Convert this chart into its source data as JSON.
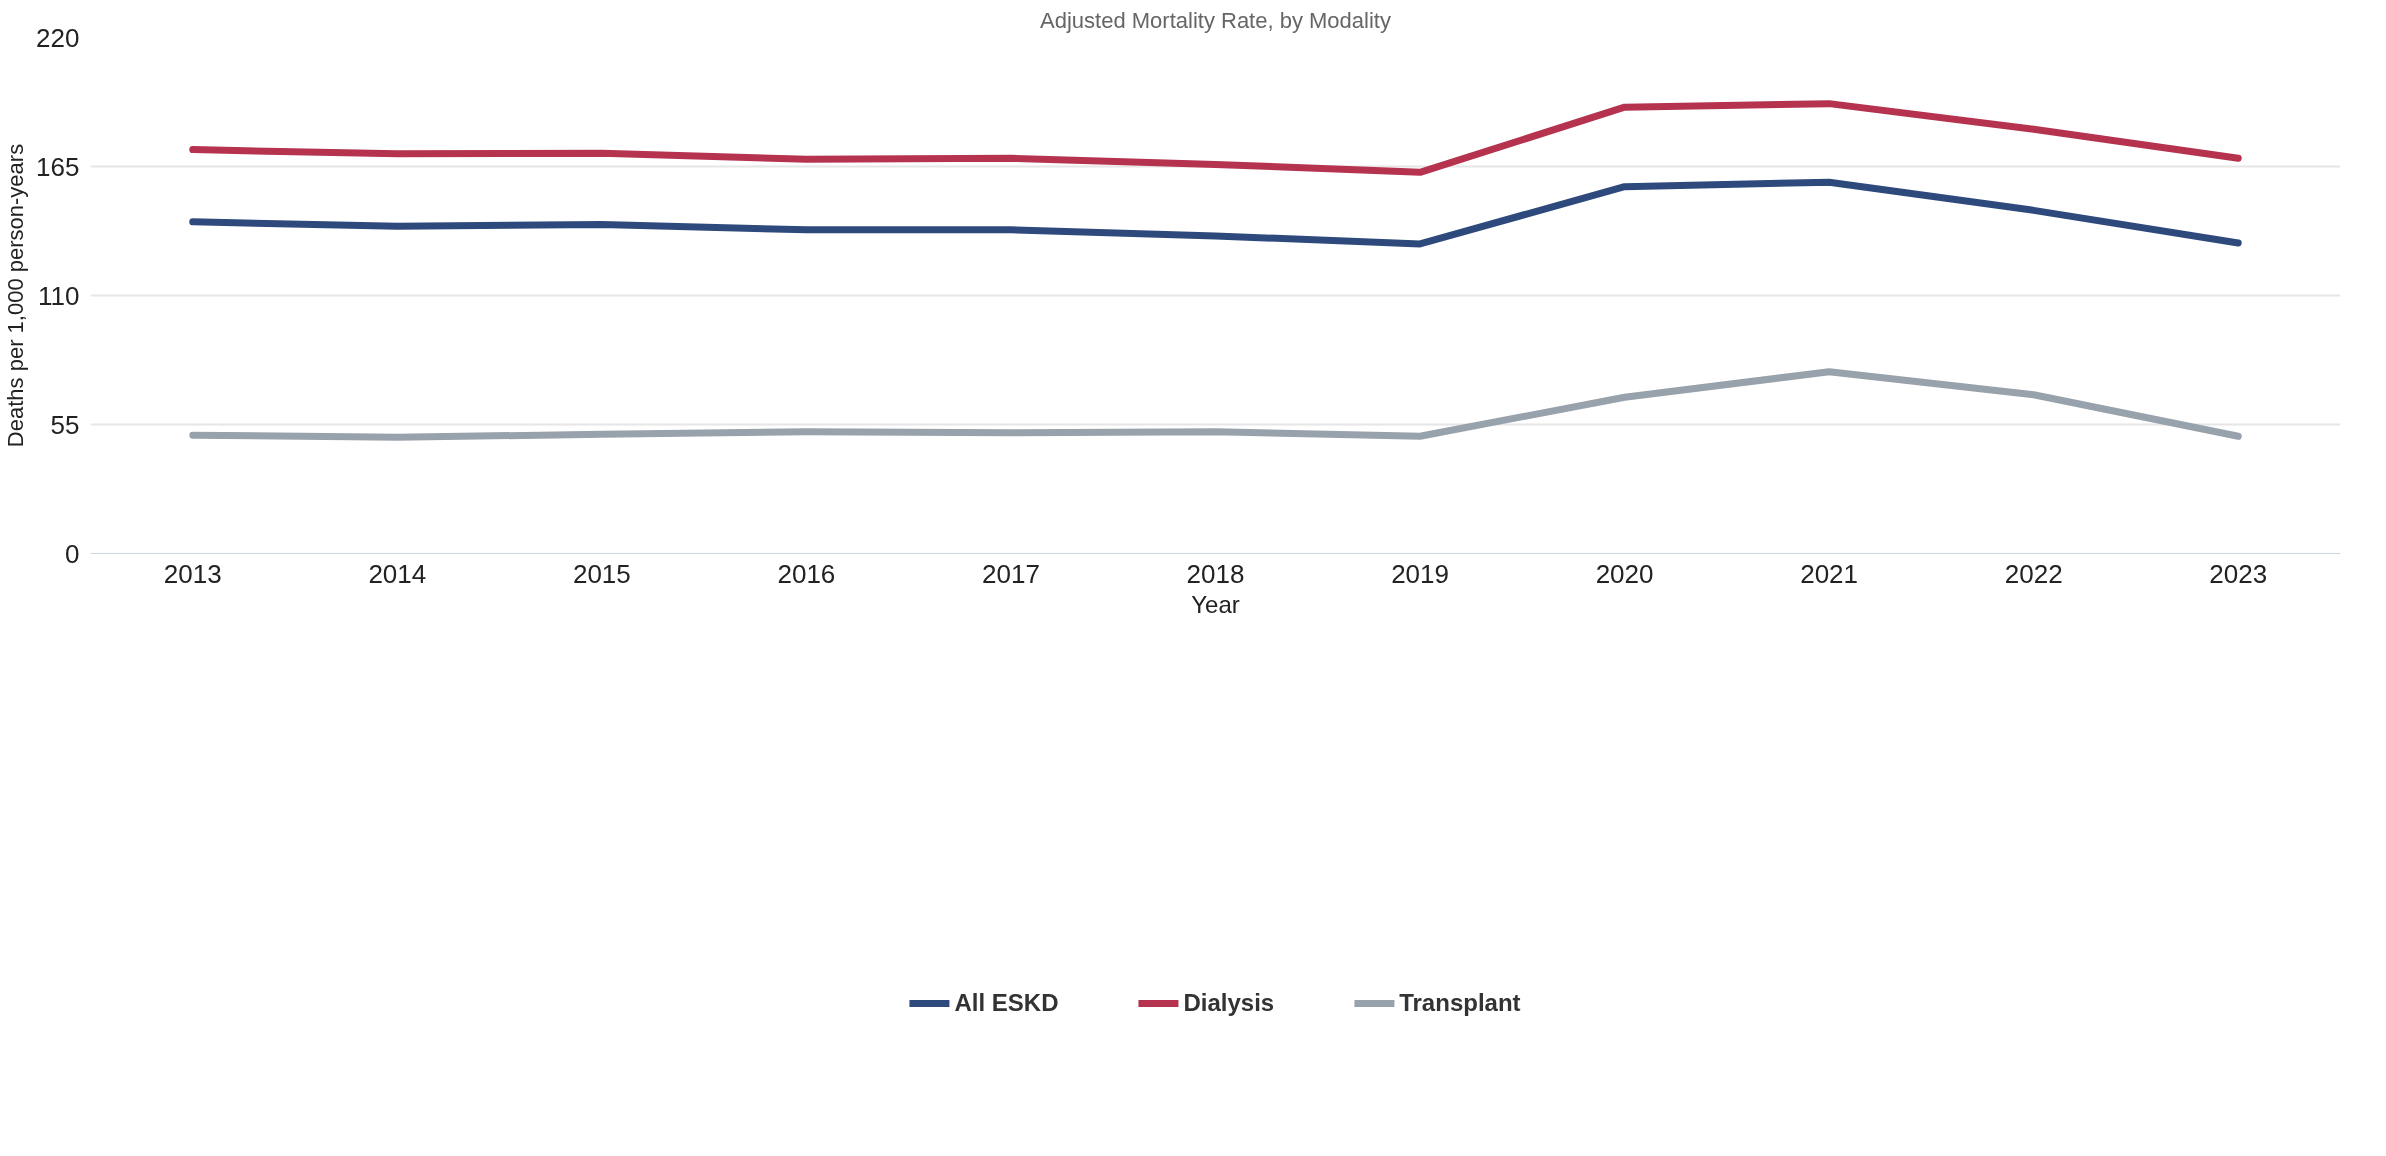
{
  "chart_data": {
    "type": "line",
    "title": "Adjusted Mortality Rate, by Modality",
    "xlabel": "Year",
    "ylabel": "Deaths per 1,000 person-years",
    "categories": [
      "2013",
      "2014",
      "2015",
      "2016",
      "2017",
      "2018",
      "2019",
      "2020",
      "2021",
      "2022",
      "2023"
    ],
    "series": [
      {
        "name": "All ESKD",
        "color": "#2e4a7d",
        "values": [
          141.4,
          139.5,
          140.3,
          138.0,
          138.0,
          135.4,
          132.0,
          156.4,
          158.3,
          146.3,
          132.4
        ]
      },
      {
        "name": "Dialysis",
        "color": "#b5334f",
        "values": [
          172.2,
          170.4,
          170.7,
          168.1,
          168.5,
          165.9,
          162.5,
          190.3,
          191.8,
          180.9,
          168.5
        ]
      },
      {
        "name": "Transplant",
        "color": "#98a2ac",
        "values": [
          50.4,
          49.6,
          50.8,
          51.9,
          51.5,
          51.9,
          50.0,
          66.6,
          77.5,
          67.7,
          50.0
        ]
      }
    ],
    "ylim": [
      0,
      220
    ],
    "yticks": [
      0,
      55,
      110,
      165,
      220
    ],
    "grid": "y",
    "legend": "bottom",
    "marker": "none",
    "line_style": "solid"
  }
}
